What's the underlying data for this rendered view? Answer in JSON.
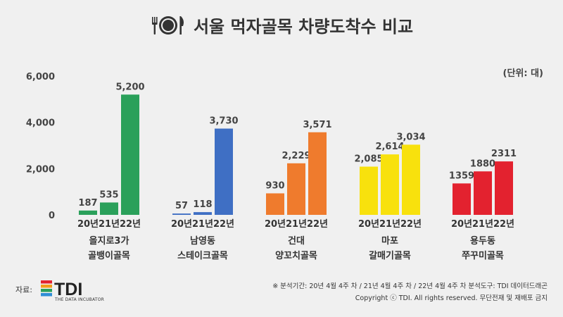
{
  "header": {
    "title": "서울 먹자골목 차량도착수 비교",
    "unit": "(단위: 대)"
  },
  "icons": {
    "title_icon": "dining-plate-fork-knife-icon"
  },
  "footer": {
    "source_label": "자료:",
    "logo_text": "TDI",
    "logo_sub": "THE DATA INCUBATOR",
    "note": "※ 분석기간: 20년 4월 4주 차 / 21년 4월 4주 차 / 22년 4월 4주 차 분석도구: TDI 데이터드래곤",
    "copyright": "Copyright ⓒ TDI. All rights reserved. 무단전재 및 재배포 금지"
  },
  "chart_data": {
    "type": "bar",
    "title": "서울 먹자골목 차량도착수 비교",
    "ylim": [
      0,
      6000
    ],
    "yticks": [
      "0",
      "2,000",
      "4,000",
      "6,000"
    ],
    "ytick_values": [
      0,
      2000,
      4000,
      6000
    ],
    "grid": false,
    "year_labels": [
      "20년",
      "21년",
      "22년"
    ],
    "groups": [
      {
        "name_lines": [
          "을지로3가",
          "골뱅이골목"
        ],
        "values": [
          187,
          535,
          5200
        ],
        "labels": [
          "187",
          "535",
          "5,200"
        ],
        "color": "#2aa05a"
      },
      {
        "name_lines": [
          "남영동",
          "스테이크골목"
        ],
        "values": [
          57,
          118,
          3730
        ],
        "labels": [
          "57",
          "118",
          "3,730"
        ],
        "color": "#3f6fc4"
      },
      {
        "name_lines": [
          "건대",
          "양꼬치골목"
        ],
        "values": [
          930,
          2229,
          3571
        ],
        "labels": [
          "930",
          "2,229",
          "3,571"
        ],
        "color": "#ef7b2d"
      },
      {
        "name_lines": [
          "마포",
          "갈매기골목"
        ],
        "values": [
          2085,
          2614,
          3034
        ],
        "labels": [
          "2,085",
          "2,614",
          "3,034"
        ],
        "color": "#f8e10d"
      },
      {
        "name_lines": [
          "용두동",
          "쭈꾸미골목"
        ],
        "values": [
          1359,
          1880,
          2311
        ],
        "labels": [
          "1359",
          "1880",
          "2311"
        ],
        "color": "#e3222f"
      }
    ]
  }
}
